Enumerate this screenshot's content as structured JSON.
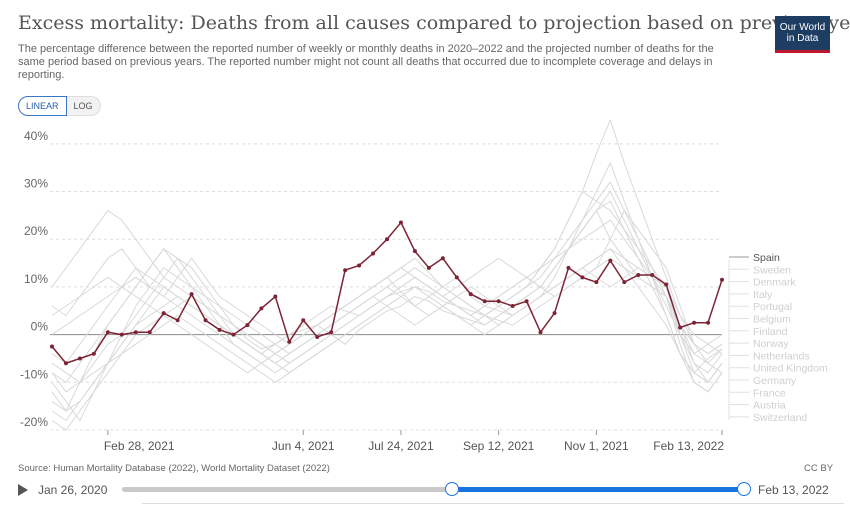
{
  "header": {
    "title": "Excess mortality: Deaths from all causes compared to projection based on previous years",
    "subtitle": "The percentage difference between the reported number of weekly or monthly deaths in 2020–2022 and the projected number of deaths for the same period based on previous years. The reported number might not count all deaths that occurred due to incomplete coverage and delays in reporting.",
    "logo_line1": "Our World",
    "logo_line2": "in Data"
  },
  "controls": {
    "linear_label": "LINEAR",
    "log_label": "LOG"
  },
  "footer": {
    "source": "Source: Human Mortality Database (2022), World Mortality Dataset (2022)",
    "license": "CC BY"
  },
  "timeline": {
    "start_label": "Jan 26, 2020",
    "end_label": "Feb 13, 2022",
    "selected_start_fraction": 0.53,
    "selected_end_fraction": 1.0
  },
  "colors": {
    "highlight": "#7d2434",
    "background_series": "#d9d9d9",
    "grid": "#dddddd",
    "slider": "#1a74e0"
  },
  "chart_data": {
    "type": "line",
    "title": "Excess mortality: Deaths from all causes compared to projection based on previous years",
    "xlabel": "",
    "ylabel": "",
    "ylim": [
      -20,
      45
    ],
    "unit": "%",
    "y_ticks": [
      -20,
      -10,
      0,
      10,
      20,
      30,
      40
    ],
    "y_tick_labels": [
      "-20%",
      "-10%",
      "0%",
      "10%",
      "20%",
      "30%",
      "40%"
    ],
    "x_tick_labels": [
      "Feb 28, 2021",
      "Jun 4, 2021",
      "Jul 24, 2021",
      "Sep 12, 2021",
      "Nov 1, 2021",
      "Feb 13, 2022"
    ],
    "x_tick_index": [
      4,
      18,
      25,
      32,
      39,
      48
    ],
    "n_points": 49,
    "grid": true,
    "highlighted_series": "Spain",
    "legend": [
      "Spain",
      "Sweden",
      "Denmark",
      "Italy",
      "Portugal",
      "Belgium",
      "Finland",
      "Norway",
      "Netherlands",
      "United Kingdom",
      "Germany",
      "France",
      "Austria",
      "Switzerland"
    ],
    "series": [
      {
        "name": "Spain",
        "values": [
          -2.5,
          -6,
          -5,
          -4,
          0.5,
          0,
          0.5,
          0.5,
          4.5,
          3,
          8.5,
          3,
          1,
          0,
          2,
          5.5,
          8,
          -1.5,
          3,
          -0.5,
          0.5,
          13.5,
          14.5,
          17,
          20,
          23.5,
          17.5,
          14,
          16,
          12,
          8.5,
          7,
          7,
          6,
          7,
          0.5,
          4.5,
          14,
          12,
          11,
          15.5,
          11,
          12.5,
          12.5,
          10.5,
          1.5,
          2.5,
          2.5,
          11.5
        ]
      },
      {
        "name": "Sweden",
        "values": [
          -8,
          -12,
          -10,
          -6,
          -2,
          0,
          4,
          8,
          12,
          16,
          14,
          10,
          6,
          2,
          -1,
          -3,
          -2,
          0,
          1,
          2,
          0,
          -2,
          1,
          3,
          5,
          6,
          8,
          7,
          5,
          4,
          3,
          2,
          4,
          6,
          8,
          10,
          14,
          18,
          22,
          26,
          28,
          22,
          16,
          10,
          4,
          -4,
          -8,
          -5,
          -3
        ]
      },
      {
        "name": "Denmark",
        "values": [
          -14,
          -16,
          -10,
          -4,
          2,
          6,
          10,
          14,
          18,
          16,
          12,
          8,
          4,
          0,
          -2,
          -4,
          -2,
          0,
          2,
          4,
          6,
          5,
          4,
          6,
          8,
          9,
          10,
          9,
          7,
          6,
          5,
          4,
          6,
          8,
          10,
          14,
          18,
          24,
          30,
          38,
          45,
          36,
          28,
          20,
          12,
          4,
          -2,
          -6,
          -8
        ]
      },
      {
        "name": "Italy",
        "values": [
          6,
          4,
          8,
          12,
          16,
          18,
          14,
          10,
          8,
          12,
          16,
          12,
          8,
          6,
          4,
          2,
          0,
          -2,
          0,
          2,
          4,
          6,
          8,
          10,
          12,
          9,
          6,
          8,
          10,
          12,
          8,
          6,
          5,
          4,
          6,
          8,
          10,
          12,
          14,
          16,
          18,
          14,
          10,
          6,
          2,
          -4,
          -8,
          -10,
          -6
        ]
      },
      {
        "name": "Portugal",
        "values": [
          10,
          14,
          18,
          22,
          26,
          24,
          20,
          16,
          12,
          10,
          8,
          6,
          4,
          2,
          0,
          -2,
          -4,
          -2,
          0,
          2,
          4,
          6,
          8,
          10,
          12,
          14,
          16,
          13,
          10,
          8,
          6,
          4,
          3,
          2,
          4,
          6,
          8,
          10,
          12,
          14,
          20,
          26,
          22,
          18,
          14,
          6,
          -2,
          -4,
          -2
        ]
      },
      {
        "name": "Belgium",
        "values": [
          -12,
          -16,
          -14,
          -10,
          -6,
          -2,
          2,
          4,
          6,
          8,
          6,
          4,
          2,
          0,
          -2,
          -4,
          -6,
          -4,
          -2,
          0,
          2,
          4,
          6,
          8,
          6,
          4,
          2,
          4,
          6,
          8,
          6,
          4,
          2,
          4,
          6,
          8,
          12,
          18,
          24,
          30,
          36,
          28,
          20,
          12,
          4,
          -4,
          -10,
          -12,
          -8
        ]
      },
      {
        "name": "Finland",
        "values": [
          0,
          2,
          4,
          6,
          8,
          10,
          12,
          10,
          8,
          6,
          4,
          2,
          0,
          -2,
          -4,
          -6,
          -4,
          -2,
          0,
          2,
          4,
          6,
          8,
          10,
          12,
          14,
          12,
          10,
          8,
          6,
          4,
          2,
          4,
          6,
          8,
          10,
          14,
          18,
          22,
          26,
          30,
          24,
          18,
          12,
          6,
          0,
          -4,
          -2,
          0
        ]
      },
      {
        "name": "Norway",
        "values": [
          -6,
          -8,
          -10,
          -8,
          -6,
          -4,
          -2,
          0,
          2,
          4,
          2,
          0,
          -2,
          -4,
          -6,
          -8,
          -10,
          -8,
          -6,
          -4,
          -2,
          0,
          2,
          4,
          6,
          8,
          10,
          8,
          6,
          4,
          2,
          0,
          2,
          4,
          6,
          8,
          10,
          12,
          14,
          16,
          18,
          16,
          14,
          12,
          10,
          2,
          -6,
          -10,
          -6
        ]
      },
      {
        "name": "Netherlands",
        "values": [
          -8,
          -10,
          -6,
          -2,
          2,
          6,
          10,
          14,
          18,
          14,
          10,
          6,
          2,
          -2,
          -4,
          -6,
          -8,
          -6,
          -4,
          -2,
          0,
          2,
          4,
          6,
          8,
          10,
          12,
          10,
          8,
          6,
          4,
          6,
          8,
          10,
          12,
          14,
          16,
          18,
          20,
          22,
          24,
          20,
          16,
          12,
          8,
          0,
          -6,
          -8,
          -4
        ]
      },
      {
        "name": "United Kingdom",
        "values": [
          -18,
          -20,
          -16,
          -12,
          -8,
          -4,
          0,
          2,
          4,
          2,
          0,
          -2,
          -4,
          -6,
          -8,
          -6,
          -4,
          -2,
          0,
          2,
          4,
          6,
          8,
          10,
          12,
          14,
          12,
          10,
          8,
          6,
          4,
          6,
          8,
          10,
          12,
          10,
          8,
          10,
          12,
          14,
          16,
          14,
          12,
          10,
          8,
          2,
          -4,
          -6,
          -3
        ]
      },
      {
        "name": "Germany",
        "values": [
          4,
          6,
          8,
          10,
          12,
          10,
          8,
          6,
          4,
          6,
          8,
          6,
          4,
          2,
          0,
          -2,
          -4,
          -6,
          -4,
          -2,
          0,
          2,
          4,
          6,
          8,
          10,
          12,
          10,
          8,
          10,
          12,
          14,
          16,
          14,
          12,
          10,
          14,
          18,
          22,
          26,
          20,
          16,
          12,
          10,
          8,
          2,
          -2,
          -4,
          -2
        ]
      },
      {
        "name": "France",
        "values": [
          -4,
          -6,
          -2,
          2,
          6,
          10,
          14,
          12,
          10,
          8,
          6,
          4,
          2,
          0,
          -2,
          -4,
          -6,
          -4,
          -2,
          0,
          2,
          4,
          6,
          8,
          10,
          8,
          6,
          4,
          6,
          8,
          10,
          8,
          6,
          4,
          6,
          8,
          10,
          12,
          14,
          12,
          10,
          12,
          14,
          12,
          10,
          4,
          0,
          -2,
          -4
        ]
      },
      {
        "name": "Austria",
        "values": [
          -10,
          -14,
          -18,
          -12,
          -6,
          0,
          6,
          10,
          14,
          12,
          10,
          8,
          6,
          4,
          2,
          0,
          -2,
          -4,
          -2,
          0,
          2,
          4,
          6,
          8,
          10,
          12,
          14,
          12,
          10,
          8,
          6,
          4,
          6,
          8,
          10,
          14,
          18,
          24,
          30,
          28,
          26,
          22,
          18,
          14,
          10,
          0,
          -8,
          -10,
          -6
        ]
      },
      {
        "name": "Switzerland",
        "values": [
          -16,
          -18,
          -14,
          -10,
          -6,
          -2,
          2,
          6,
          10,
          8,
          6,
          4,
          2,
          0,
          -2,
          -4,
          -6,
          -8,
          -6,
          -4,
          -2,
          0,
          2,
          4,
          6,
          8,
          10,
          8,
          6,
          4,
          2,
          4,
          6,
          8,
          10,
          12,
          16,
          20,
          24,
          28,
          32,
          26,
          20,
          14,
          8,
          -2,
          -10,
          -12,
          -8
        ]
      }
    ]
  }
}
